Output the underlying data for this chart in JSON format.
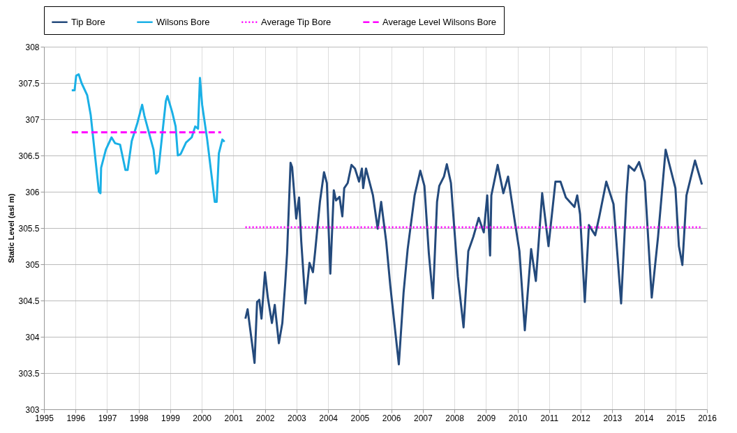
{
  "chart_data": {
    "type": "line",
    "ylabel": "Static Level (asl m)",
    "xlim": [
      1995,
      2016
    ],
    "xticks": [
      1995,
      1996,
      1997,
      1998,
      1999,
      2000,
      2001,
      2002,
      2003,
      2004,
      2005,
      2006,
      2007,
      2008,
      2009,
      2010,
      2011,
      2012,
      2013,
      2014,
      2015,
      2016
    ],
    "ylim": [
      303,
      308
    ],
    "yticks": [
      303,
      303.5,
      304,
      304.5,
      305,
      305.5,
      306,
      306.5,
      307,
      307.5,
      308
    ],
    "grid": true,
    "legend": "top",
    "marker": "none",
    "series": [
      {
        "name": "Tip Bore",
        "color": "#244a7c",
        "line_style": "solid",
        "x": [
          2001.38,
          2001.45,
          2001.67,
          2001.75,
          2001.82,
          2001.89,
          2002.0,
          2002.09,
          2002.22,
          2002.31,
          2002.44,
          2002.55,
          2002.64,
          2002.7,
          2002.81,
          2002.86,
          2002.99,
          2003.08,
          2003.15,
          2003.28,
          2003.41,
          2003.52,
          2003.59,
          2003.74,
          2003.87,
          2003.96,
          2004.07,
          2004.18,
          2004.25,
          2004.36,
          2004.45,
          2004.51,
          2004.62,
          2004.74,
          2004.85,
          2004.98,
          2005.07,
          2005.11,
          2005.2,
          2005.42,
          2005.57,
          2005.68,
          2005.84,
          2005.97,
          2006.24,
          2006.39,
          2006.52,
          2006.74,
          2006.92,
          2007.05,
          2007.19,
          2007.32,
          2007.45,
          2007.52,
          2007.67,
          2007.76,
          2007.89,
          2008.11,
          2008.29,
          2008.44,
          2008.6,
          2008.77,
          2008.93,
          2009.04,
          2009.13,
          2009.17,
          2009.37,
          2009.55,
          2009.7,
          2009.92,
          2010.06,
          2010.23,
          2010.43,
          2010.58,
          2010.78,
          2010.98,
          2011.2,
          2011.36,
          2011.53,
          2011.8,
          2011.89,
          2011.98,
          2012.13,
          2012.26,
          2012.46,
          2012.59,
          2012.81,
          2013.04,
          2013.28,
          2013.45,
          2013.52,
          2013.7,
          2013.85,
          2014.03,
          2014.25,
          2014.45,
          2014.69,
          2015.0,
          2015.11,
          2015.22,
          2015.35,
          2015.62,
          2015.84
        ],
        "values": [
          304.25,
          304.38,
          303.64,
          304.48,
          304.51,
          304.25,
          304.89,
          304.54,
          304.19,
          304.44,
          303.91,
          304.19,
          304.73,
          305.15,
          306.4,
          306.34,
          305.63,
          305.92,
          305.31,
          304.46,
          305.02,
          304.89,
          305.18,
          305.86,
          306.27,
          306.12,
          304.87,
          306.02,
          305.88,
          305.93,
          305.66,
          306.05,
          306.12,
          306.37,
          306.32,
          306.14,
          306.32,
          306.05,
          306.32,
          305.95,
          305.49,
          305.86,
          305.31,
          304.7,
          303.62,
          304.61,
          305.21,
          305.95,
          306.29,
          306.08,
          305.15,
          304.53,
          305.86,
          306.08,
          306.21,
          306.38,
          306.12,
          304.83,
          304.13,
          305.18,
          305.38,
          305.64,
          305.44,
          305.95,
          305.12,
          305.95,
          306.37,
          305.98,
          306.21,
          305.57,
          305.18,
          304.09,
          305.21,
          304.77,
          305.98,
          305.25,
          306.14,
          306.14,
          305.92,
          305.79,
          305.95,
          305.69,
          304.48,
          305.54,
          305.4,
          305.66,
          306.14,
          305.83,
          304.46,
          305.95,
          306.36,
          306.29,
          306.41,
          306.14,
          304.54,
          305.38,
          306.58,
          306.05,
          305.25,
          304.99,
          305.95,
          306.43,
          306.1
        ]
      },
      {
        "name": "Wilsons Bore",
        "color": "#1ab0e6",
        "line_style": "solid",
        "x": [
          1995.88,
          1995.97,
          1996.02,
          1996.1,
          1996.19,
          1996.37,
          1996.48,
          1996.74,
          1996.79,
          1996.81,
          1996.96,
          1997.14,
          1997.25,
          1997.41,
          1997.58,
          1997.65,
          1997.78,
          1997.96,
          1998.11,
          1998.18,
          1998.47,
          1998.55,
          1998.62,
          1998.86,
          1998.91,
          1999.06,
          1999.17,
          1999.24,
          1999.33,
          1999.5,
          1999.68,
          1999.79,
          1999.88,
          1999.94,
          2000.01,
          2000.17,
          2000.41,
          2000.47,
          2000.54,
          2000.65,
          2000.72
        ],
        "values": [
          307.4,
          307.4,
          307.6,
          307.62,
          307.5,
          307.33,
          307.06,
          306.0,
          305.98,
          306.33,
          306.58,
          306.75,
          306.67,
          306.65,
          306.3,
          306.3,
          306.7,
          306.95,
          307.2,
          307.05,
          306.58,
          306.25,
          306.28,
          307.25,
          307.32,
          307.1,
          306.9,
          306.5,
          306.52,
          306.68,
          306.75,
          306.9,
          306.87,
          307.57,
          307.2,
          306.72,
          305.86,
          305.86,
          306.53,
          306.72,
          306.69
        ]
      },
      {
        "name": "Average Tip Bore",
        "color": "#ff00ff",
        "line_style": "dotted",
        "x": [
          2001.38,
          2015.84
        ],
        "values": [
          305.51,
          305.51
        ]
      },
      {
        "name": "Average Level Wilsons Bore",
        "color": "#ff00ff",
        "line_style": "dashed",
        "x": [
          1995.88,
          2000.61
        ],
        "values": [
          306.82,
          306.82
        ]
      }
    ]
  }
}
